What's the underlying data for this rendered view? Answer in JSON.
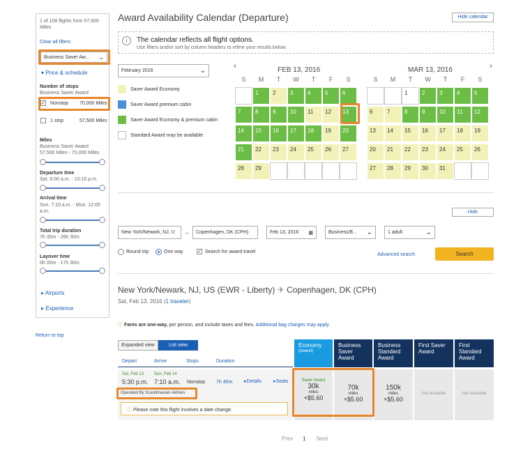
{
  "sidebar": {
    "count_text": "1 of 108 flights from 57,500 Miles",
    "clear_filters": "Clear all filters",
    "cabin_select": "Business Saver Aw...",
    "price_schedule": "Price & schedule",
    "stops_title": "Number of stops",
    "stops_sub": "Business Saver Award",
    "nonstop_label": "Nonstop",
    "nonstop_miles": "70,000 Miles",
    "onestop_label": "1 stop",
    "onestop_miles": "57,500 Miles",
    "miles_title": "Miles",
    "miles_sub": "Business Saver Award",
    "miles_range": "57,500 Miles - 70,000 Miles",
    "departure_title": "Departure time",
    "departure_range": "Sat. 6:00 a.m. - 10:15 p.m.",
    "arrival_title": "Arrival time",
    "arrival_range": "Sun. 7:10 a.m. - Mon. 12:05 a.m.",
    "total_title": "Total trip duration",
    "total_range": "7h 30m - 26h 30m",
    "layover_title": "Layover time",
    "layover_range": "0h 00m - 17h 30m",
    "airports": "Airports",
    "experience": "Experience",
    "return_top": "Return to top"
  },
  "calendar": {
    "title": "Award Availability Calendar (Departure)",
    "hide_calendar": "Hide calendar",
    "info_title": "The calendar reflects all flight options.",
    "info_sub": "Use filters and/or sort by column headers to refine your results below.",
    "month_select": "February 2016",
    "legend": [
      "Saver Award Economy",
      "Saver Award premium cabin",
      "Saver Award Economy & premium cabin",
      "Standard Award may be available"
    ],
    "legend_colors": [
      "#f2f2b8",
      "#4a90d9",
      "#6cbd45",
      "#ffffff"
    ],
    "month1": "FEB 13, 2016",
    "month2": "MAR 13, 2016",
    "dow": [
      "S",
      "M",
      "T",
      "W",
      "T",
      "F",
      "S"
    ],
    "prev_icon": "chevron-left-icon",
    "next_icon": "chevron-right-icon"
  },
  "search": {
    "hide": "Hide",
    "from": "New York/Newark, NJ, U",
    "to": "Copenhagen, DK (CPH)",
    "date": "Feb 13, 2016",
    "cabin": "Business/B...",
    "travelers": "1 adult",
    "round_trip": "Round trip",
    "one_way": "One way",
    "award_check": "Search for award travel",
    "advanced": "Advanced search",
    "search_btn": "Search"
  },
  "results": {
    "origin": "New York/Newark, NJ, US (EWR - Liberty)",
    "destination": "Copenhagen, DK (CPH)",
    "date_line": "Sat, Feb 13, 2016",
    "travelers": "1 traveler",
    "fares_note": "Fares are one-way,",
    "fares_note2": "per person, and include taxes and fees.",
    "bag_link": "Additional bag charges may apply.",
    "expanded_view": "Expanded view",
    "list_view": "List view",
    "col_depart": "Depart",
    "col_arrive": "Arrive",
    "col_stops": "Stops",
    "col_duration": "Duration",
    "dep_date": "Sat, Feb 13",
    "dep_time": "5:30 p.m.",
    "arr_date": "Sun, Feb 14",
    "arr_time": "7:10 a.m.",
    "stops": "Nonstop",
    "duration": "7h 40m",
    "details": "Details",
    "seats": "Seats",
    "operated": "Operated By Scandinavian Airlines",
    "date_change": "Please note this flight involves a date change.",
    "fare_cols": [
      {
        "line1": "Economy",
        "line2": "(lowest)"
      },
      {
        "line1": "Business",
        "line2": "Saver",
        "line3": "Award"
      },
      {
        "line1": "Business",
        "line2": "Standard",
        "line3": "Award"
      },
      {
        "line1": "First Saver",
        "line2": "Award"
      },
      {
        "line1": "First",
        "line2": "Standard",
        "line3": "Award"
      }
    ],
    "econ_label": "Saver Award",
    "econ_miles": "30k",
    "econ_tax": "+$5.60",
    "bus_saver_miles": "70k",
    "bus_saver_tax": "+$5.60",
    "bus_std_miles": "150k",
    "bus_std_tax": "+$5.60",
    "miles_word": "miles",
    "not_available": "Not available",
    "prev": "Prev",
    "page": "1",
    "next": "Next"
  }
}
